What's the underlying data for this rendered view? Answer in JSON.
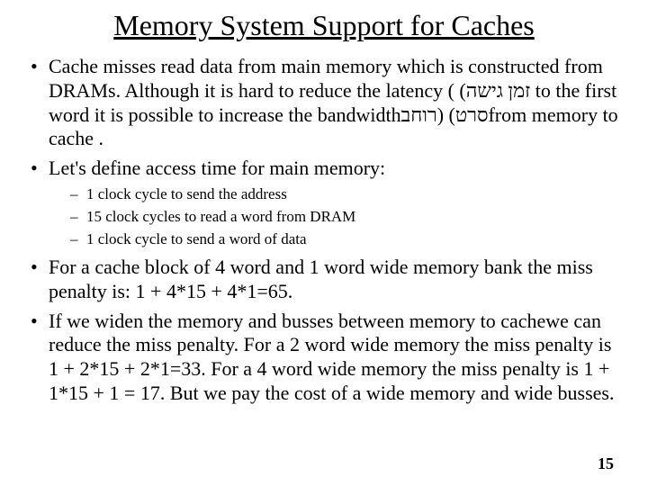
{
  "title": "Memory System Support for Caches",
  "bullets": {
    "b1": "Cache misses read data from main memory which is constructed from DRAMs. Although it is hard to reduce the latency ( (זמן גישה to the first word it is possible to increase the bandwidthרוחב)  (סרטfrom memory to cache .",
    "b2": "Let's define access time for main memory:",
    "sub": {
      "s1": "1 clock cycle to send the address",
      "s2": "15 clock cycles to read a word from DRAM",
      "s3": "1 clock cycle to send a word of data"
    },
    "b3": "For a cache block of 4 word and 1  word wide memory bank the miss penalty is: 1 + 4*15 + 4*1=65.",
    "b4": "If we widen the memory and busses between memory to cachewe can reduce the miss penalty. For a 2 word wide memory the miss penalty is 1 + 2*15 + 2*1=33. For a 4 word wide memory the miss penalty is 1 + 1*15 + 1 = 17. But we pay the cost of a wide memory and wide busses."
  },
  "page_number": "15",
  "colors": {
    "background": "#ffffff",
    "text": "#000000"
  },
  "typography": {
    "title_fontsize": 32,
    "bullet_fontsize": 22,
    "subbullet_fontsize": 17,
    "pagenum_fontsize": 18,
    "font_family": "Times New Roman"
  }
}
